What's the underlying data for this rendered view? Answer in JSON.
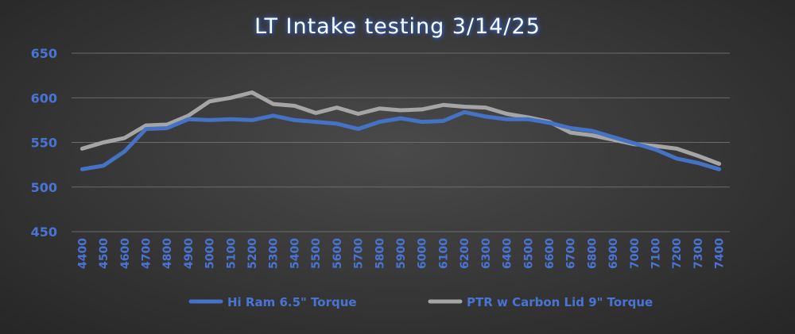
{
  "chart_data": {
    "type": "line",
    "title": "LT Intake testing 3/14/25",
    "xlabel": "",
    "ylabel": "",
    "ylim": [
      450,
      650
    ],
    "yticks": [
      450,
      500,
      550,
      600,
      650
    ],
    "grid": true,
    "legend_position": "bottom",
    "x": [
      "4400",
      "4500",
      "4600",
      "4700",
      "4800",
      "4900",
      "5000",
      "5100",
      "5200",
      "5300",
      "5400",
      "5500",
      "5600",
      "5700",
      "5800",
      "5900",
      "6000",
      "6100",
      "6200",
      "6300",
      "6400",
      "6500",
      "6600",
      "6700",
      "6800",
      "6900",
      "7000",
      "7100",
      "7200",
      "7300",
      "7400"
    ],
    "series": [
      {
        "name": "Hi Ram 6.5\" Torque",
        "color": "#4472c4",
        "values": [
          520,
          524,
          540,
          565,
          566,
          576,
          575,
          576,
          575,
          580,
          575,
          573,
          571,
          565,
          573,
          577,
          573,
          574,
          584,
          579,
          576,
          576,
          572,
          566,
          563,
          556,
          549,
          542,
          532,
          527,
          520
        ]
      },
      {
        "name": "PTR w Carbon Lid 9\" Torque",
        "color": "#a5a5a5",
        "values": [
          543,
          550,
          555,
          569,
          570,
          580,
          596,
          600,
          606,
          593,
          591,
          583,
          589,
          582,
          588,
          586,
          587,
          592,
          590,
          589,
          582,
          578,
          573,
          561,
          558,
          553,
          548,
          546,
          543,
          535,
          526
        ]
      }
    ]
  }
}
